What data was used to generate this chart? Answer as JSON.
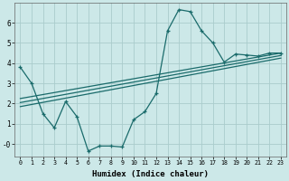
{
  "bg_color": "#cce8e8",
  "grid_color": "#aacccc",
  "line_color": "#1a6b6b",
  "xlabel": "Humidex (Indice chaleur)",
  "ylim": [
    -0.6,
    7.0
  ],
  "xlim": [
    -0.5,
    23.5
  ],
  "yticks": [
    0,
    1,
    2,
    3,
    4,
    5,
    6
  ],
  "ytick_labels": [
    "-0",
    "1",
    "2",
    "3",
    "4",
    "5",
    "6"
  ],
  "xticks": [
    0,
    1,
    2,
    3,
    4,
    5,
    6,
    7,
    8,
    9,
    10,
    11,
    12,
    13,
    14,
    15,
    16,
    17,
    18,
    19,
    20,
    21,
    22,
    23
  ],
  "series1_x": [
    0,
    1,
    2,
    3,
    4,
    5,
    6,
    7,
    8,
    9,
    10,
    11,
    12,
    13,
    14,
    15,
    16,
    17,
    18,
    19,
    20,
    21,
    22,
    23
  ],
  "series1_y": [
    3.8,
    3.0,
    1.5,
    0.8,
    2.1,
    1.35,
    -0.35,
    -0.1,
    -0.1,
    -0.15,
    1.2,
    1.6,
    2.5,
    5.6,
    6.65,
    6.55,
    5.6,
    5.0,
    4.05,
    4.45,
    4.4,
    4.35,
    4.5,
    4.5
  ],
  "series2_x": [
    0,
    23
  ],
  "series2_y": [
    2.25,
    4.5
  ],
  "series3_x": [
    0,
    23
  ],
  "series3_y": [
    2.05,
    4.38
  ],
  "series4_x": [
    0,
    23
  ],
  "series4_y": [
    1.85,
    4.25
  ]
}
